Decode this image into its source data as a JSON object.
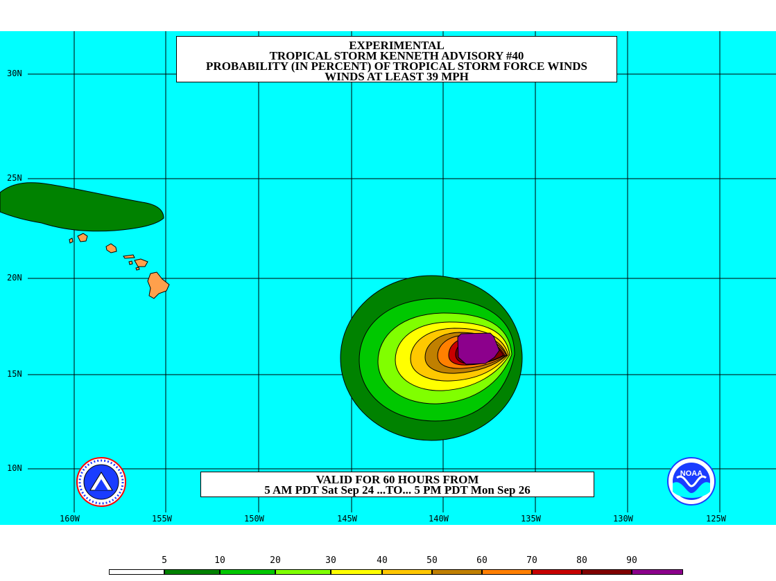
{
  "title": {
    "line1": "EXPERIMENTAL",
    "line2": "TROPICAL STORM KENNETH ADVISORY #40",
    "line3": "PROBABILITY (IN PERCENT) OF TROPICAL STORM FORCE WINDS",
    "line4": "WINDS AT LEAST 39 MPH"
  },
  "valid": {
    "line1": "VALID FOR 60 HOURS FROM",
    "line2": "5 AM PDT Sat Sep 24 ...TO... 5 PM PDT Mon Sep 26"
  },
  "axes": {
    "lat_labels": [
      "30N",
      "25N",
      "20N",
      "15N",
      "10N"
    ],
    "lon_labels": [
      "160W",
      "155W",
      "150W",
      "145W",
      "140W",
      "135W",
      "130W",
      "125W"
    ]
  },
  "legend": {
    "ticks": [
      "5",
      "10",
      "20",
      "30",
      "40",
      "50",
      "60",
      "70",
      "80",
      "90"
    ],
    "colors": [
      "#ffffff",
      "#008200",
      "#00c800",
      "#80ff00",
      "#ffff00",
      "#ffc800",
      "#c08000",
      "#ff8000",
      "#c80000",
      "#800000",
      "#8c008c"
    ]
  },
  "colors": {
    "ocean": "#00ffff",
    "land_hawaii": "#ffa04c",
    "prob_5": "#008200",
    "prob_10": "#00c800",
    "prob_20": "#80ff00",
    "prob_30": "#ffff00",
    "prob_40": "#ffc800",
    "prob_50": "#c08000",
    "prob_60": "#ff8000",
    "prob_70": "#c80000",
    "prob_80": "#800000",
    "prob_90": "#8c008c"
  },
  "icons": {
    "left_logo": "nws-logo-icon",
    "right_logo": "noaa-logo-icon",
    "noaa_text": "NOAA"
  }
}
